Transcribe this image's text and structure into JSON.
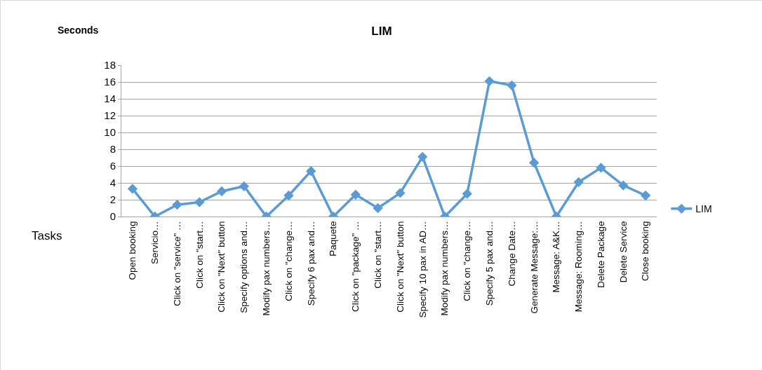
{
  "chart_data": {
    "type": "line",
    "title": "LIM",
    "ylabel": "Seconds",
    "xlabel": "Tasks",
    "categories": [
      "Open booking",
      "Servicio…",
      "Click on \"service\" …",
      "Click on \"start…",
      "Click on \"Next\" button",
      "Specify options and…",
      "Modify pax numbers…",
      "Click on \"change…",
      "Specify 6 pax and…",
      "Paquete",
      "Click on \"package\" …",
      "Click on \"start…",
      "Click on \"Next\" button",
      "Specify 10 pax in AD…",
      "Modify pax numbers…",
      "Click on \"change…",
      "Specify 5 pax and…",
      "Change Date…",
      "Generate Message:…",
      "Message: A&K…",
      "Message: Rooming…",
      "Delete Package",
      "Delete Service",
      "Close booking"
    ],
    "series": [
      {
        "name": "LIM",
        "color": "#5b9bd5",
        "values": [
          3.3,
          0,
          1.4,
          1.7,
          3.0,
          3.6,
          0,
          2.5,
          5.4,
          0,
          2.6,
          1.0,
          2.8,
          7.1,
          0,
          2.7,
          16.1,
          15.6,
          6.4,
          0,
          4.1,
          5.8,
          3.7,
          2.5
        ]
      }
    ],
    "ylim": [
      0,
      18
    ],
    "yticks": [
      0,
      2,
      4,
      6,
      8,
      10,
      12,
      14,
      16,
      18
    ],
    "grid": "y",
    "legend": "right",
    "marker": "diamond",
    "line_style": "solid"
  }
}
